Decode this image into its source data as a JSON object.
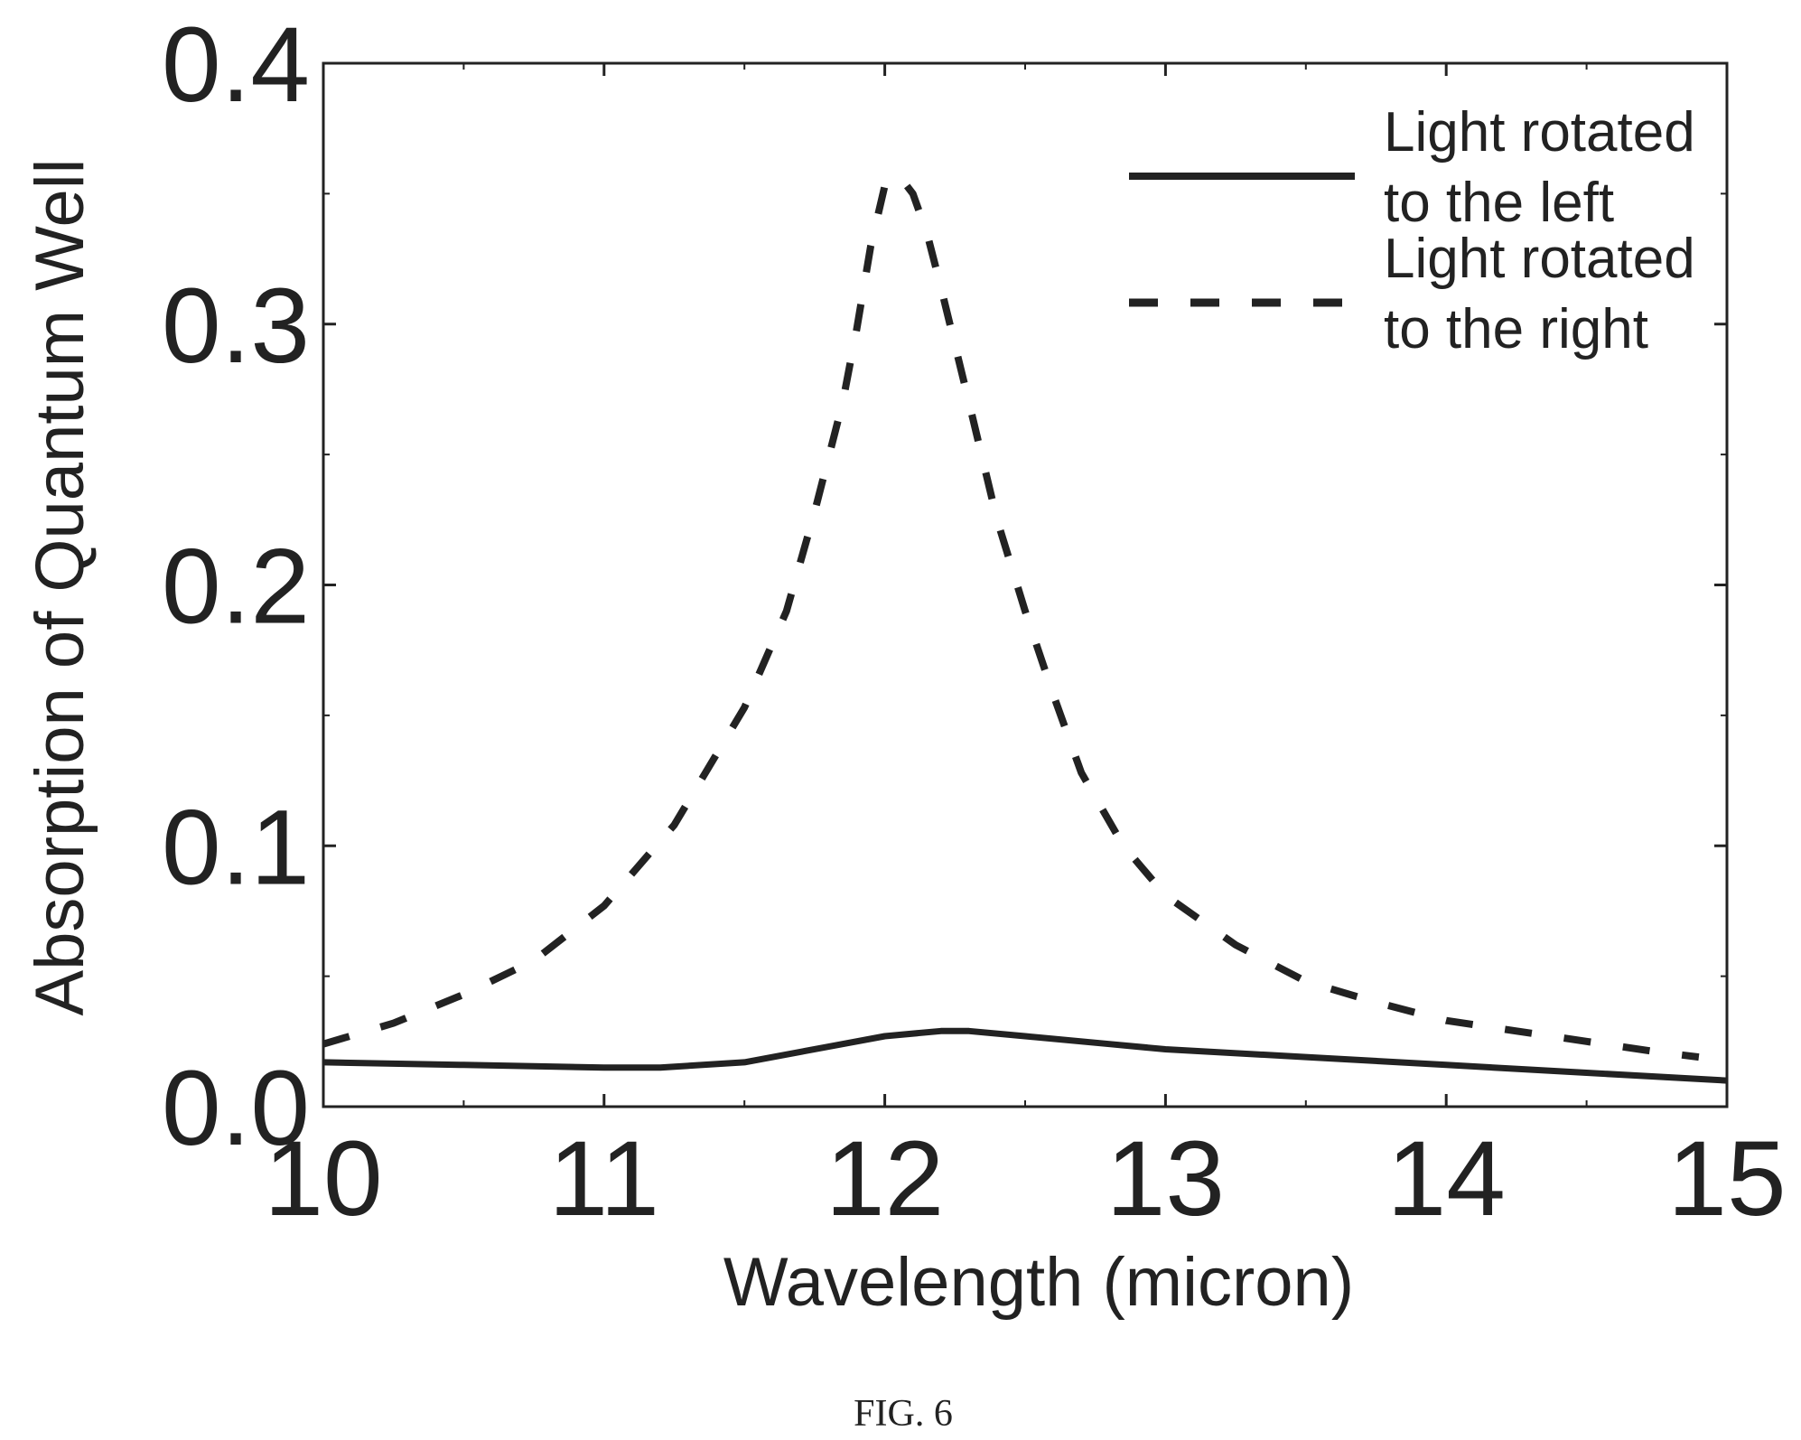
{
  "caption": "FIG. 6",
  "chart_data": {
    "type": "line",
    "xlabel": "Wavelength (micron)",
    "ylabel": "Absorption of Quantum Well",
    "xlim": [
      10,
      15
    ],
    "ylim": [
      0,
      0.4
    ],
    "x_ticks": [
      10,
      11,
      12,
      13,
      14,
      15
    ],
    "x_tick_labels": [
      "10",
      "11",
      "12",
      "13",
      "14",
      "15"
    ],
    "y_ticks": [
      0,
      0.1,
      0.2,
      0.3,
      0.4
    ],
    "y_tick_labels": [
      "0.0",
      "0.1",
      "0.2",
      "0.3",
      "0.4"
    ],
    "grid": false,
    "legend_position": "top-right",
    "series": [
      {
        "name": "Light rotated to the left",
        "name_lines": [
          "Light rotated",
          "to the left"
        ],
        "style": "solid",
        "color": "#222222",
        "x": [
          10.0,
          10.5,
          11.0,
          11.2,
          11.5,
          11.8,
          12.0,
          12.2,
          12.3,
          12.5,
          12.8,
          13.0,
          13.5,
          14.0,
          14.5,
          15.0
        ],
        "y": [
          0.017,
          0.016,
          0.015,
          0.015,
          0.017,
          0.023,
          0.027,
          0.029,
          0.029,
          0.027,
          0.024,
          0.022,
          0.019,
          0.016,
          0.013,
          0.01
        ]
      },
      {
        "name": "Light rotated to the right",
        "name_lines": [
          "Light rotated",
          "to the right"
        ],
        "style": "dashed",
        "color": "#222222",
        "x": [
          10.0,
          10.25,
          10.5,
          10.75,
          11.0,
          11.25,
          11.5,
          11.65,
          11.75,
          11.85,
          11.9,
          11.95,
          12.0,
          12.05,
          12.1,
          12.15,
          12.2,
          12.3,
          12.4,
          12.5,
          12.6,
          12.7,
          12.85,
          13.0,
          13.25,
          13.5,
          13.75,
          14.0,
          14.25,
          14.5,
          14.75,
          14.9
        ],
        "y": [
          0.024,
          0.032,
          0.043,
          0.056,
          0.077,
          0.108,
          0.153,
          0.19,
          0.228,
          0.27,
          0.298,
          0.33,
          0.353,
          0.357,
          0.35,
          0.335,
          0.314,
          0.27,
          0.225,
          0.19,
          0.158,
          0.128,
          0.1,
          0.081,
          0.062,
          0.048,
          0.04,
          0.033,
          0.029,
          0.025,
          0.021,
          0.019
        ]
      }
    ]
  }
}
